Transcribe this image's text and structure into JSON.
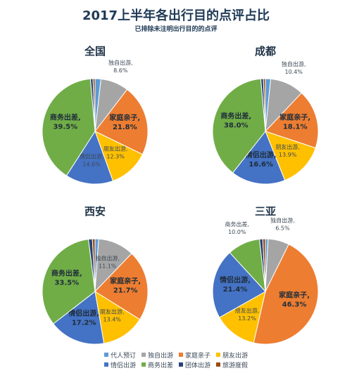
{
  "page": {
    "title": "2017上半年各出行目的点评占比",
    "subtitle": "已排除未注明出行目的的点评"
  },
  "legend": {
    "rows": [
      [
        {
          "label": "代人预订",
          "color": "#5b9bd5"
        },
        {
          "label": "独自出游",
          "color": "#a5a5a5"
        },
        {
          "label": "家庭亲子",
          "color": "#ed7d31"
        },
        {
          "label": "朋友出游",
          "color": "#ffc000"
        }
      ],
      [
        {
          "label": "情侣出游",
          "color": "#4472c4"
        },
        {
          "label": "商务出差",
          "color": "#70ad47"
        },
        {
          "label": "团体出游",
          "color": "#264478"
        },
        {
          "label": "旅游度假",
          "color": "#9e480e"
        }
      ]
    ]
  },
  "chart_data": [
    {
      "type": "pie",
      "title": "全国",
      "slices": [
        {
          "name": "代人预订",
          "value": 1.8,
          "color": "#5b9bd5",
          "label": ""
        },
        {
          "name": "独自出游",
          "value": 8.6,
          "color": "#a5a5a5",
          "label": "独自出游,\n8.6%"
        },
        {
          "name": "家庭亲子",
          "value": 21.8,
          "color": "#ed7d31",
          "label": "家庭亲子,\n21.8%"
        },
        {
          "name": "朋友出游",
          "value": 12.3,
          "color": "#ffc000",
          "label": "朋友出游,\n12.3%"
        },
        {
          "name": "情侣出游",
          "value": 14.6,
          "color": "#4472c4",
          "label": "情侣出游,\n14.6%"
        },
        {
          "name": "商务出差",
          "value": 39.5,
          "color": "#70ad47",
          "label": "商务出差,\n39.5%"
        },
        {
          "name": "团体出游",
          "value": 0.8,
          "color": "#264478",
          "label": ""
        },
        {
          "name": "旅游度假",
          "value": 0.6,
          "color": "#9e480e",
          "label": ""
        }
      ]
    },
    {
      "type": "pie",
      "title": "成都",
      "slices": [
        {
          "name": "代人预订",
          "value": 1.6,
          "color": "#5b9bd5",
          "label": ""
        },
        {
          "name": "独自出游",
          "value": 10.4,
          "color": "#a5a5a5",
          "label": "独自出游,\n10.4%"
        },
        {
          "name": "家庭亲子",
          "value": 18.1,
          "color": "#ed7d31",
          "label": "家庭亲子,\n18.1%"
        },
        {
          "name": "朋友出游",
          "value": 13.9,
          "color": "#ffc000",
          "label": "朋友出游,\n13.9%"
        },
        {
          "name": "情侣出游",
          "value": 16.6,
          "color": "#4472c4",
          "label": "情侣出游,\n16.6%"
        },
        {
          "name": "商务出差",
          "value": 38.0,
          "color": "#70ad47",
          "label": "商务出差,\n38.0%"
        },
        {
          "name": "团体出游",
          "value": 0.8,
          "color": "#264478",
          "label": ""
        },
        {
          "name": "旅游度假",
          "value": 0.6,
          "color": "#9e480e",
          "label": ""
        }
      ]
    },
    {
      "type": "pie",
      "title": "西安",
      "slices": [
        {
          "name": "代人预订",
          "value": 1.1,
          "color": "#5b9bd5",
          "label": ""
        },
        {
          "name": "独自出游",
          "value": 11.1,
          "color": "#a5a5a5",
          "label": "独自出游,\n11.1%"
        },
        {
          "name": "家庭亲子",
          "value": 21.7,
          "color": "#ed7d31",
          "label": "家庭亲子,\n21.7%"
        },
        {
          "name": "朋友出游",
          "value": 13.4,
          "color": "#ffc000",
          "label": "朋友出游,\n13.4%"
        },
        {
          "name": "情侣出游",
          "value": 17.2,
          "color": "#4472c4",
          "label": "情侣出游,\n17.2%"
        },
        {
          "name": "商务出差",
          "value": 33.5,
          "color": "#70ad47",
          "label": "商务出差,\n33.5%"
        },
        {
          "name": "团体出游",
          "value": 1.2,
          "color": "#264478",
          "label": ""
        },
        {
          "name": "旅游度假",
          "value": 0.8,
          "color": "#9e480e",
          "label": ""
        }
      ]
    },
    {
      "type": "pie",
      "title": "三亚",
      "slices": [
        {
          "name": "代人预订",
          "value": 0.8,
          "color": "#5b9bd5",
          "label": ""
        },
        {
          "name": "独自出游",
          "value": 6.5,
          "color": "#a5a5a5",
          "label": "独自出游,\n6.5%"
        },
        {
          "name": "家庭亲子",
          "value": 46.3,
          "color": "#ed7d31",
          "label": "家庭亲子,\n46.3%"
        },
        {
          "name": "朋友出游",
          "value": 13.2,
          "color": "#ffc000",
          "label": "朋友出游,\n13.2%"
        },
        {
          "name": "情侣出游",
          "value": 21.4,
          "color": "#4472c4",
          "label": "情侣出游,\n21.4%"
        },
        {
          "name": "商务出差",
          "value": 10.0,
          "color": "#70ad47",
          "label": "商务出差,\n10.0%"
        },
        {
          "name": "团体出游",
          "value": 1.0,
          "color": "#264478",
          "label": ""
        },
        {
          "name": "旅游度假",
          "value": 0.8,
          "color": "#9e480e",
          "label": ""
        }
      ]
    }
  ]
}
